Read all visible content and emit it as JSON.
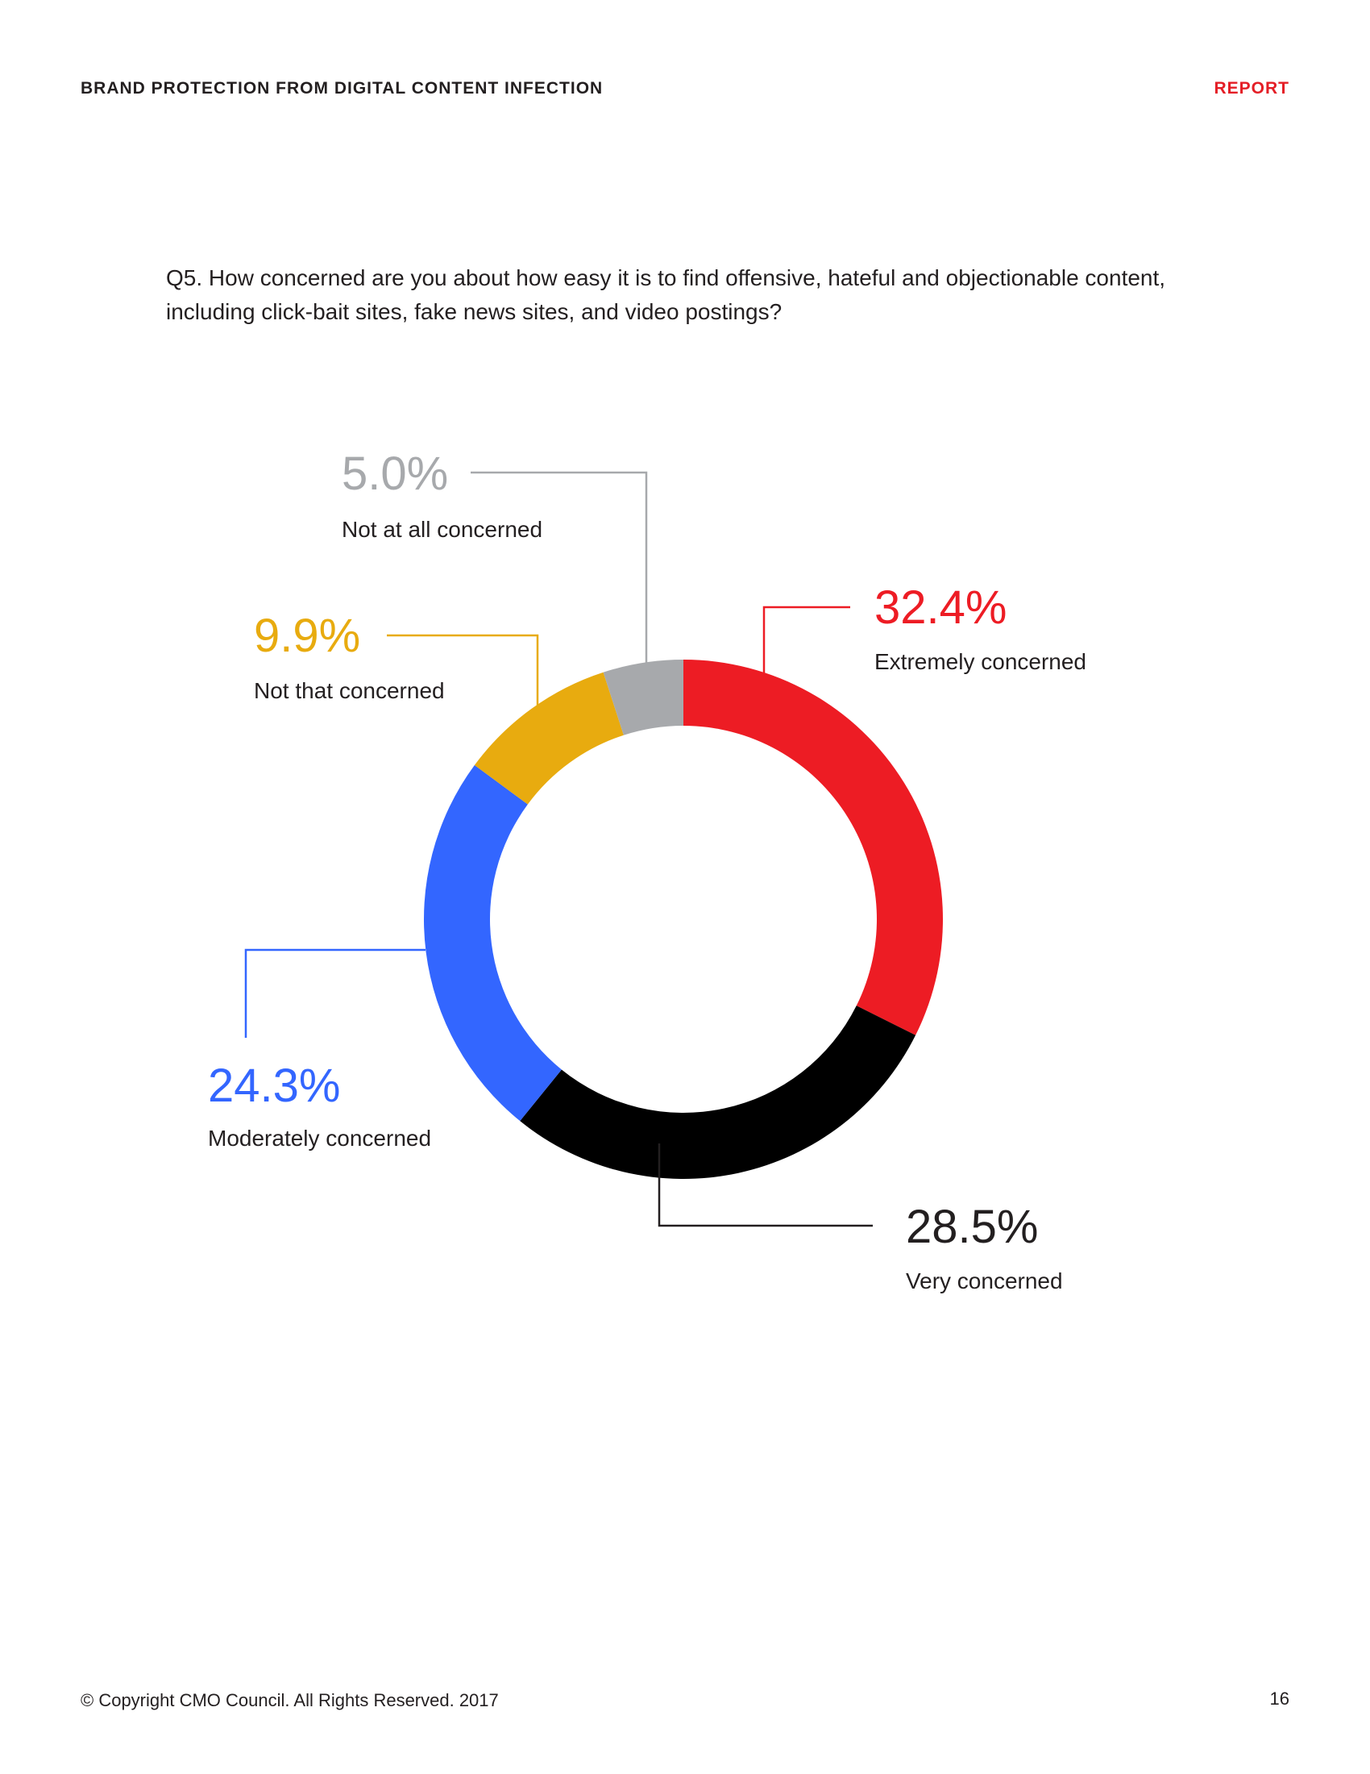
{
  "header": {
    "title": "BRAND PROTECTION FROM DIGITAL CONTENT INFECTION",
    "section": "REPORT"
  },
  "question": "Q5. How concerned are you about how easy it is to find offensive, hateful and objectionable content, including click-bait sites, fake news sites, and video postings?",
  "chart_data": {
    "type": "pie",
    "style": "donut",
    "slices": [
      {
        "label": "Extremely concerned",
        "value": 32.4,
        "display": "32.4%",
        "color": "#ed1c24"
      },
      {
        "label": "Very concerned",
        "value": 28.5,
        "display": "28.5%",
        "color": "#000000"
      },
      {
        "label": "Moderately concerned",
        "value": 24.3,
        "display": "24.3%",
        "color": "#3366ff"
      },
      {
        "label": "Not that concerned",
        "value": 9.9,
        "display": "9.9%",
        "color": "#e8ab0f"
      },
      {
        "label": "Not at all concerned",
        "value": 5.0,
        "display": "5.0%",
        "color": "#a7a9ac"
      }
    ]
  },
  "footer": {
    "copyright": "© Copyright CMO Council. All Rights Reserved. 2017",
    "page_number": "16"
  }
}
